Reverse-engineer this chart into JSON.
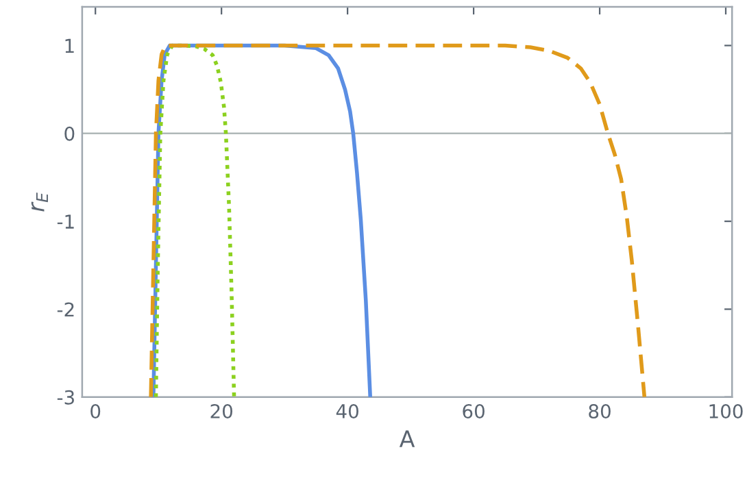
{
  "chart_data": {
    "type": "line",
    "xlabel": "A",
    "ylabel": "r$_{E}$",
    "xlim": [
      -2.1,
      101
    ],
    "ylim": [
      -3,
      1.44
    ],
    "xticks": [
      0,
      20,
      40,
      60,
      80,
      100
    ],
    "yticks": [
      -3,
      -2,
      -1,
      0,
      1
    ],
    "grid": false,
    "legend": false,
    "marker": "none",
    "ref_lines": [
      {
        "axis": "y",
        "value": 0,
        "color": "#b0b8b8"
      }
    ],
    "series": [
      {
        "color": "#5b8ee3",
        "line_style": "solid",
        "x": [
          9.2,
          9.6,
          10.0,
          10.5,
          11.0,
          11.8,
          20,
          30,
          35,
          37,
          38.5,
          39.6,
          40.4,
          40.9,
          41.5,
          42.1,
          42.9,
          43.6
        ],
        "values": [
          -3,
          -1.5,
          0,
          0.6,
          0.9,
          1,
          1,
          1,
          0.97,
          0.89,
          0.74,
          0.5,
          0.25,
          0,
          -0.45,
          -0.98,
          -1.9,
          -3
        ]
      },
      {
        "color": "#8cd11f",
        "line_style": "dotted",
        "x": [
          9.6,
          9.9,
          10.3,
          10.8,
          11.4,
          12.2,
          14,
          16,
          17.3,
          18.6,
          19.3,
          19.9,
          20.4,
          20.7,
          21.2,
          21.6,
          22.0
        ],
        "values": [
          -3,
          -1.5,
          0,
          0.6,
          0.9,
          1,
          1,
          0.99,
          0.96,
          0.89,
          0.77,
          0.58,
          0.3,
          0,
          -0.83,
          -1.8,
          -3
        ]
      },
      {
        "color": "#e09a1a",
        "line_style": "dashed",
        "x": [
          8.8,
          9.2,
          9.6,
          10.0,
          10.5,
          11.1,
          13,
          30,
          50,
          65,
          69,
          72,
          74.9,
          77,
          78.5,
          80,
          81.3,
          82.4,
          83.4,
          84.3,
          85.1,
          86.1,
          87.1
        ],
        "values": [
          -3,
          -1.5,
          0,
          0.6,
          0.9,
          1,
          1,
          1,
          1,
          1,
          0.98,
          0.94,
          0.86,
          0.74,
          0.58,
          0.33,
          0,
          -0.24,
          -0.52,
          -0.95,
          -1.45,
          -2.2,
          -3
        ]
      }
    ]
  }
}
